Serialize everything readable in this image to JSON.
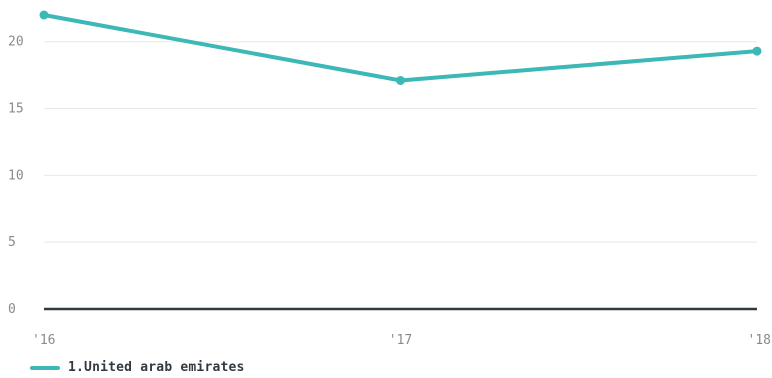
{
  "chart_data": {
    "type": "line",
    "x": [
      "'16",
      "'17",
      "'18"
    ],
    "series": [
      {
        "name": "1.United arab emirates",
        "values": [
          22.0,
          17.1,
          19.3
        ],
        "color": "#3db8b6"
      }
    ],
    "yticks": [
      0,
      5,
      10,
      15,
      20
    ],
    "ylim": [
      0,
      22
    ],
    "grid": true,
    "legend_position": "bottom-left",
    "gridline_color": "#e8e8e8",
    "baseline_color": "#2f3a3f"
  }
}
